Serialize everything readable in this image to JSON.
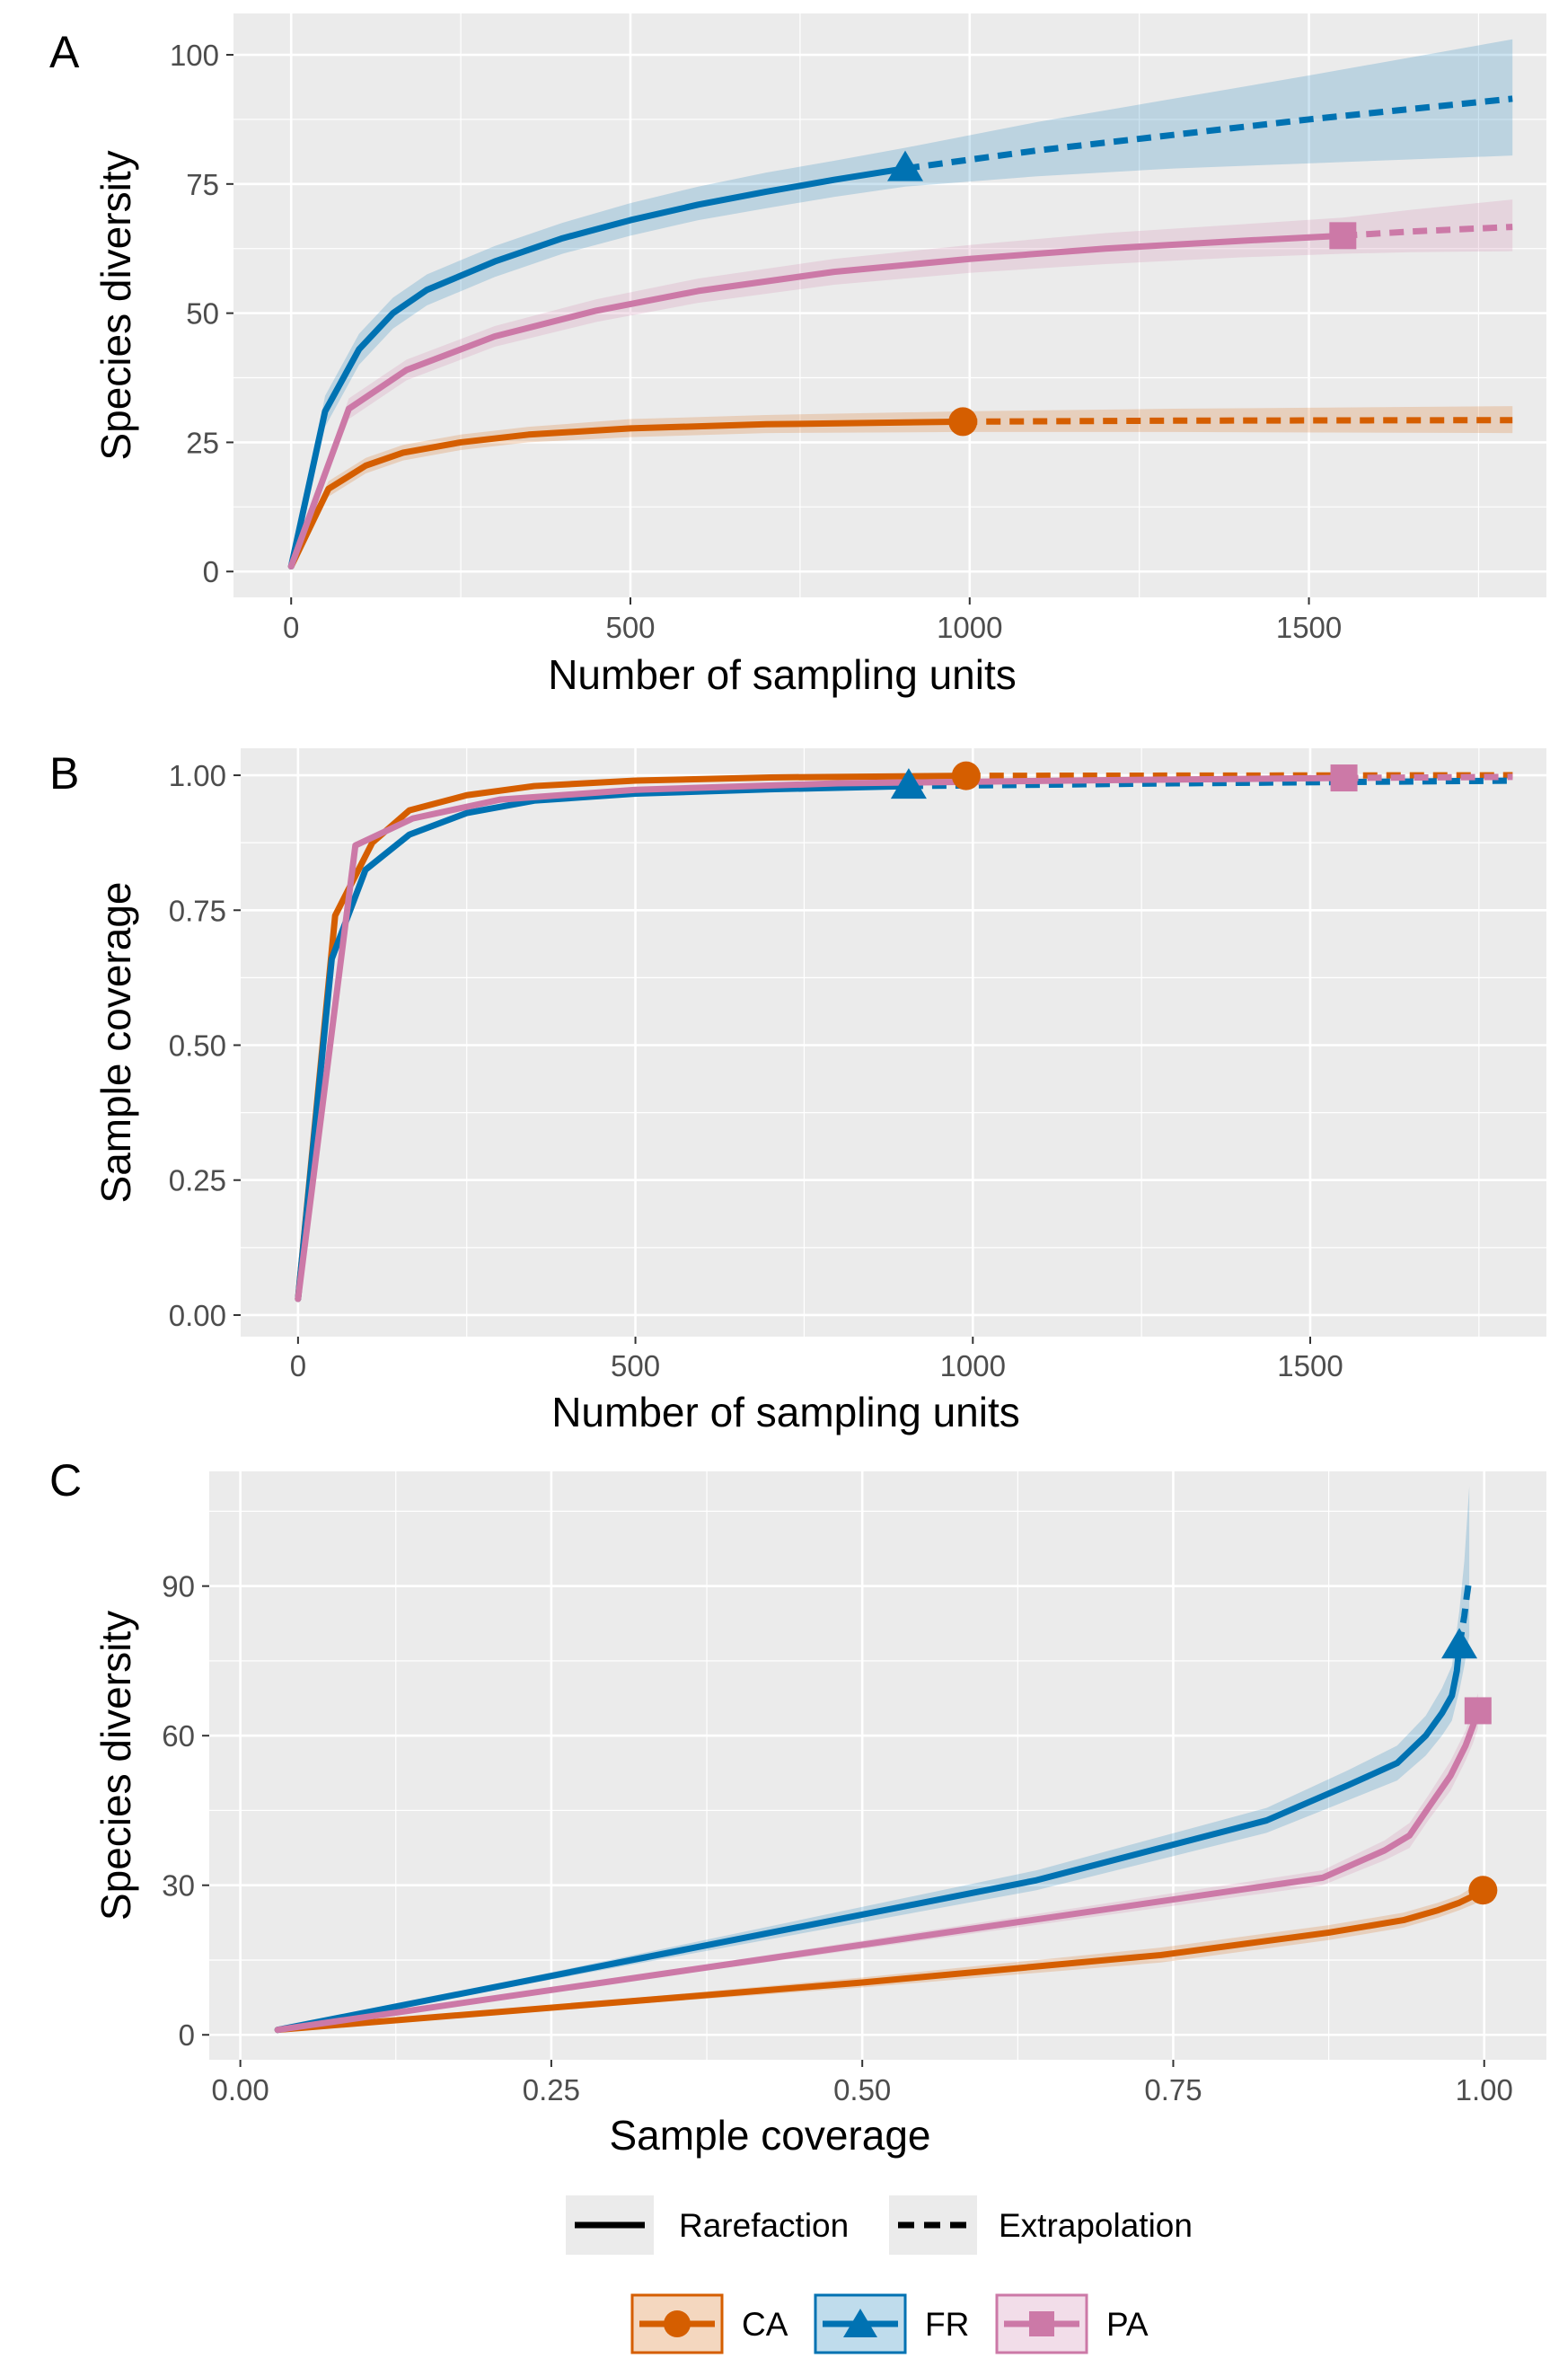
{
  "chart_data": [
    {
      "panel": "A",
      "type": "line",
      "xlabel": "Number of sampling units",
      "ylabel": "Species diversity",
      "xlim": [
        -85,
        1850
      ],
      "ylim": [
        -5,
        108
      ],
      "xticks": [
        0,
        500,
        1000,
        1500
      ],
      "xtick_labels": [
        "0",
        "500",
        "1000",
        "1500"
      ],
      "yticks": [
        0,
        25,
        50,
        75,
        100
      ],
      "ytick_labels": [
        "0",
        "25",
        "50",
        "75",
        "100"
      ],
      "grid": true,
      "series": [
        {
          "name": "CA",
          "color": "#D55E00",
          "marker": "circle",
          "observed": [
            990,
            29
          ],
          "rarefaction": [
            [
              0,
              1
            ],
            [
              55,
              16
            ],
            [
              110,
              20.5
            ],
            [
              165,
              23
            ],
            [
              250,
              25
            ],
            [
              350,
              26.5
            ],
            [
              500,
              27.7
            ],
            [
              700,
              28.5
            ],
            [
              990,
              29
            ]
          ],
          "extrapolation": [
            [
              990,
              29
            ],
            [
              1300,
              29.2
            ],
            [
              1800,
              29.3
            ]
          ],
          "band": [
            [
              0,
              1,
              1
            ],
            [
              55,
              14.5,
              17.5
            ],
            [
              110,
              19,
              22
            ],
            [
              165,
              21.5,
              24.5
            ],
            [
              250,
              23.5,
              26.5
            ],
            [
              350,
              25,
              28
            ],
            [
              500,
              26,
              29.5
            ],
            [
              700,
              26.8,
              30.3
            ],
            [
              990,
              27,
              31
            ],
            [
              1300,
              27,
              31.5
            ],
            [
              1800,
              26.8,
              32
            ]
          ]
        },
        {
          "name": "FR",
          "color": "#0072B2",
          "marker": "triangle",
          "observed": [
            905,
            78
          ],
          "rarefaction": [
            [
              0,
              1
            ],
            [
              50,
              31
            ],
            [
              100,
              43
            ],
            [
              150,
              50
            ],
            [
              200,
              54.5
            ],
            [
              300,
              60
            ],
            [
              400,
              64.5
            ],
            [
              500,
              68
            ],
            [
              600,
              71
            ],
            [
              700,
              73.5
            ],
            [
              800,
              75.8
            ],
            [
              905,
              78
            ]
          ],
          "extrapolation": [
            [
              905,
              78
            ],
            [
              1100,
              81.5
            ],
            [
              1300,
              84.5
            ],
            [
              1500,
              87.5
            ],
            [
              1800,
              91.5
            ]
          ],
          "band": [
            [
              0,
              1,
              1
            ],
            [
              50,
              28,
              34
            ],
            [
              100,
              40,
              46
            ],
            [
              150,
              47,
              53
            ],
            [
              200,
              51.5,
              57.5
            ],
            [
              300,
              57,
              63
            ],
            [
              400,
              61.5,
              67.5
            ],
            [
              500,
              65,
              71.3
            ],
            [
              600,
              68,
              74.5
            ],
            [
              700,
              70.3,
              77.2
            ],
            [
              800,
              72.5,
              79.5
            ],
            [
              905,
              74.5,
              82
            ],
            [
              1100,
              76.5,
              87
            ],
            [
              1300,
              78,
              91.5
            ],
            [
              1500,
              79,
              96
            ],
            [
              1800,
              80.5,
              103
            ]
          ]
        },
        {
          "name": "PA",
          "color": "#CC79A7",
          "marker": "square",
          "observed": [
            1550,
            65
          ],
          "rarefaction": [
            [
              0,
              1
            ],
            [
              85,
              31.5
            ],
            [
              170,
              39
            ],
            [
              300,
              45.5
            ],
            [
              450,
              50.5
            ],
            [
              600,
              54.3
            ],
            [
              800,
              58
            ],
            [
              1000,
              60.5
            ],
            [
              1200,
              62.5
            ],
            [
              1400,
              64
            ],
            [
              1550,
              65
            ]
          ],
          "extrapolation": [
            [
              1550,
              65
            ],
            [
              1650,
              65.8
            ],
            [
              1800,
              66.7
            ]
          ],
          "band": [
            [
              0,
              1,
              1
            ],
            [
              85,
              29.5,
              33.5
            ],
            [
              170,
              37,
              41
            ],
            [
              300,
              43.5,
              47.5
            ],
            [
              450,
              48.3,
              52.7
            ],
            [
              600,
              52,
              56.7
            ],
            [
              800,
              55.5,
              60.5
            ],
            [
              1000,
              57.8,
              63.2
            ],
            [
              1200,
              59.5,
              65.5
            ],
            [
              1400,
              60.8,
              67.2
            ],
            [
              1550,
              61.5,
              68.5
            ],
            [
              1650,
              61.8,
              70
            ],
            [
              1800,
              62,
              72
            ]
          ]
        }
      ]
    },
    {
      "panel": "B",
      "type": "line",
      "xlabel": "Number of sampling units",
      "ylabel": "Sample coverage",
      "xlim": [
        -85,
        1850
      ],
      "ylim": [
        -0.04,
        1.05
      ],
      "xticks": [
        0,
        500,
        1000,
        1500
      ],
      "xtick_labels": [
        "0",
        "500",
        "1000",
        "1500"
      ],
      "yticks": [
        0,
        0.25,
        0.5,
        0.75,
        1
      ],
      "ytick_labels": [
        "0.00",
        "0.25",
        "0.50",
        "0.75",
        "1.00"
      ],
      "grid": true,
      "series": [
        {
          "name": "CA",
          "color": "#D55E00",
          "marker": "circle",
          "observed": [
            990,
            0.999
          ],
          "rarefaction": [
            [
              0,
              0.03
            ],
            [
              55,
              0.74
            ],
            [
              110,
              0.875
            ],
            [
              165,
              0.935
            ],
            [
              250,
              0.963
            ],
            [
              350,
              0.98
            ],
            [
              500,
              0.99
            ],
            [
              700,
              0.996
            ],
            [
              990,
              0.999
            ]
          ],
          "extrapolation": [
            [
              990,
              0.999
            ],
            [
              1800,
              1.0
            ]
          ]
        },
        {
          "name": "FR",
          "color": "#0072B2",
          "marker": "triangle",
          "observed": [
            905,
            0.98
          ],
          "rarefaction": [
            [
              0,
              0.03
            ],
            [
              50,
              0.66
            ],
            [
              100,
              0.825
            ],
            [
              165,
              0.89
            ],
            [
              250,
              0.93
            ],
            [
              350,
              0.953
            ],
            [
              500,
              0.966
            ],
            [
              700,
              0.974
            ],
            [
              905,
              0.98
            ]
          ],
          "extrapolation": [
            [
              905,
              0.98
            ],
            [
              1300,
              0.985
            ],
            [
              1800,
              0.99
            ]
          ]
        },
        {
          "name": "PA",
          "color": "#CC79A7",
          "marker": "square",
          "observed": [
            1550,
            0.995
          ],
          "rarefaction": [
            [
              0,
              0.03
            ],
            [
              85,
              0.87
            ],
            [
              170,
              0.92
            ],
            [
              300,
              0.955
            ],
            [
              500,
              0.973
            ],
            [
              800,
              0.985
            ],
            [
              1200,
              0.991
            ],
            [
              1550,
              0.995
            ]
          ],
          "extrapolation": [
            [
              1550,
              0.995
            ],
            [
              1800,
              0.997
            ]
          ]
        }
      ]
    },
    {
      "panel": "C",
      "type": "line",
      "xlabel": "Sample coverage",
      "ylabel": "Species diversity",
      "xlim": [
        -0.025,
        1.05
      ],
      "ylim": [
        -5,
        113
      ],
      "xticks": [
        0,
        0.25,
        0.5,
        0.75,
        1
      ],
      "xtick_labels": [
        "0.00",
        "0.25",
        "0.50",
        "0.75",
        "1.00"
      ],
      "yticks": [
        0,
        30,
        60,
        90
      ],
      "ytick_labels": [
        "0",
        "30",
        "60",
        "90"
      ],
      "grid": true,
      "series": [
        {
          "name": "CA",
          "color": "#D55E00",
          "marker": "circle",
          "observed": [
            0.999,
            29
          ],
          "rarefaction": [
            [
              0.03,
              1
            ],
            [
              0.5,
              10.5
            ],
            [
              0.74,
              16
            ],
            [
              0.875,
              20.5
            ],
            [
              0.935,
              23
            ],
            [
              0.963,
              25
            ],
            [
              0.98,
              26.5
            ],
            [
              0.99,
              27.7
            ],
            [
              0.996,
              28.5
            ],
            [
              0.999,
              29
            ]
          ],
          "extrapolation": [
            [
              0.999,
              29
            ],
            [
              1.0,
              29.3
            ]
          ],
          "band": [
            [
              0.03,
              1,
              1
            ],
            [
              0.5,
              9.5,
              11.5
            ],
            [
              0.74,
              14.5,
              17.5
            ],
            [
              0.875,
              19,
              22
            ],
            [
              0.935,
              21.5,
              24.5
            ],
            [
              0.963,
              23.5,
              26.5
            ],
            [
              0.98,
              25,
              28
            ],
            [
              0.99,
              26,
              29.5
            ],
            [
              0.999,
              27,
              31
            ]
          ]
        },
        {
          "name": "FR",
          "color": "#0072B2",
          "marker": "triangle",
          "observed": [
            0.98,
            78
          ],
          "rarefaction": [
            [
              0.03,
              1
            ],
            [
              0.64,
              31
            ],
            [
              0.825,
              43
            ],
            [
              0.89,
              50
            ],
            [
              0.93,
              54.5
            ],
            [
              0.953,
              60
            ],
            [
              0.966,
              64.5
            ],
            [
              0.974,
              68
            ],
            [
              0.978,
              73
            ],
            [
              0.98,
              78
            ]
          ],
          "extrapolation": [
            [
              0.98,
              78
            ],
            [
              0.984,
              84
            ],
            [
              0.986,
              88
            ],
            [
              0.988,
              91.5
            ]
          ],
          "band": [
            [
              0.03,
              1,
              1
            ],
            [
              0.64,
              29,
              33
            ],
            [
              0.825,
              40.5,
              45.5
            ],
            [
              0.89,
              47,
              53
            ],
            [
              0.93,
              51,
              58
            ],
            [
              0.953,
              56,
              64
            ],
            [
              0.966,
              60,
              69.5
            ],
            [
              0.974,
              63,
              74
            ],
            [
              0.98,
              69,
              85
            ],
            [
              0.984,
              74,
              95
            ],
            [
              0.988,
              80,
              110
            ]
          ]
        },
        {
          "name": "PA",
          "color": "#CC79A7",
          "marker": "square",
          "observed": [
            0.995,
            65
          ],
          "rarefaction": [
            [
              0.03,
              1
            ],
            [
              0.87,
              31.5
            ],
            [
              0.92,
              37
            ],
            [
              0.94,
              40
            ],
            [
              0.955,
              45.5
            ],
            [
              0.973,
              52
            ],
            [
              0.985,
              58
            ],
            [
              0.991,
              62
            ],
            [
              0.995,
              65
            ]
          ],
          "extrapolation": [
            [
              0.995,
              65
            ],
            [
              0.997,
              66.7
            ]
          ],
          "band": [
            [
              0.03,
              1,
              1
            ],
            [
              0.87,
              30,
              33
            ],
            [
              0.92,
              35,
              39
            ],
            [
              0.94,
              37.5,
              42.5
            ],
            [
              0.955,
              43,
              48
            ],
            [
              0.973,
              49,
              55
            ],
            [
              0.985,
              55,
              61
            ],
            [
              0.991,
              58.5,
              65.5
            ],
            [
              0.995,
              61.5,
              68.5
            ]
          ]
        }
      ]
    }
  ],
  "panel_letters": {
    "a": "A",
    "b": "B",
    "c": "C"
  },
  "legend": {
    "linetype": {
      "solid": "Rarefaction",
      "dashed": "Extrapolation"
    },
    "groups": [
      {
        "name": "CA",
        "color": "#D55E00",
        "marker": "circle"
      },
      {
        "name": "FR",
        "color": "#0072B2",
        "marker": "triangle"
      },
      {
        "name": "PA",
        "color": "#CC79A7",
        "marker": "square"
      }
    ]
  }
}
